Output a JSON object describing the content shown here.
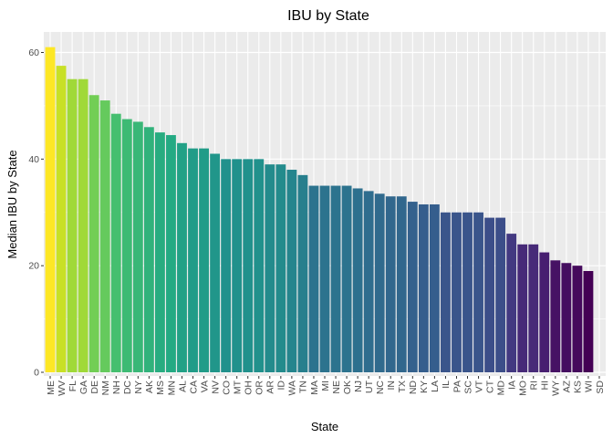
{
  "chart_data": {
    "type": "bar",
    "title": "IBU by State",
    "xlabel": "State",
    "ylabel": "Median IBU by State",
    "ylim": [
      0,
      62
    ],
    "yticks": [
      0,
      20,
      40,
      60
    ],
    "grid": true,
    "legend": "none",
    "colormap": "viridis",
    "panel_color": "#ebebeb",
    "gridline_color": "#ffffff",
    "categories": [
      "ME",
      "WV",
      "FL",
      "GA",
      "DE",
      "NM",
      "NH",
      "DC",
      "NY",
      "AK",
      "MS",
      "MN",
      "AL",
      "CA",
      "VA",
      "NV",
      "CO",
      "MT",
      "OH",
      "OR",
      "AR",
      "ID",
      "WA",
      "TN",
      "MA",
      "MI",
      "NE",
      "OK",
      "NJ",
      "UT",
      "NC",
      "IN",
      "TX",
      "ND",
      "KY",
      "LA",
      "IL",
      "PA",
      "SC",
      "VT",
      "CT",
      "MD",
      "IA",
      "MO",
      "RI",
      "HI",
      "WY",
      "AZ",
      "KS",
      "WI",
      "SD"
    ],
    "values": [
      61,
      57.5,
      55,
      55,
      52,
      51,
      48.5,
      47.5,
      47,
      46,
      45,
      44.5,
      43,
      42,
      42,
      41,
      40,
      40,
      40,
      40,
      39,
      39,
      38,
      37,
      35,
      35,
      35,
      35,
      34.5,
      34,
      33.5,
      33,
      33,
      32,
      31.5,
      31.5,
      30,
      30,
      30,
      30,
      29,
      29,
      26,
      24,
      24,
      22.5,
      21,
      20.5,
      20,
      19,
      null
    ]
  }
}
